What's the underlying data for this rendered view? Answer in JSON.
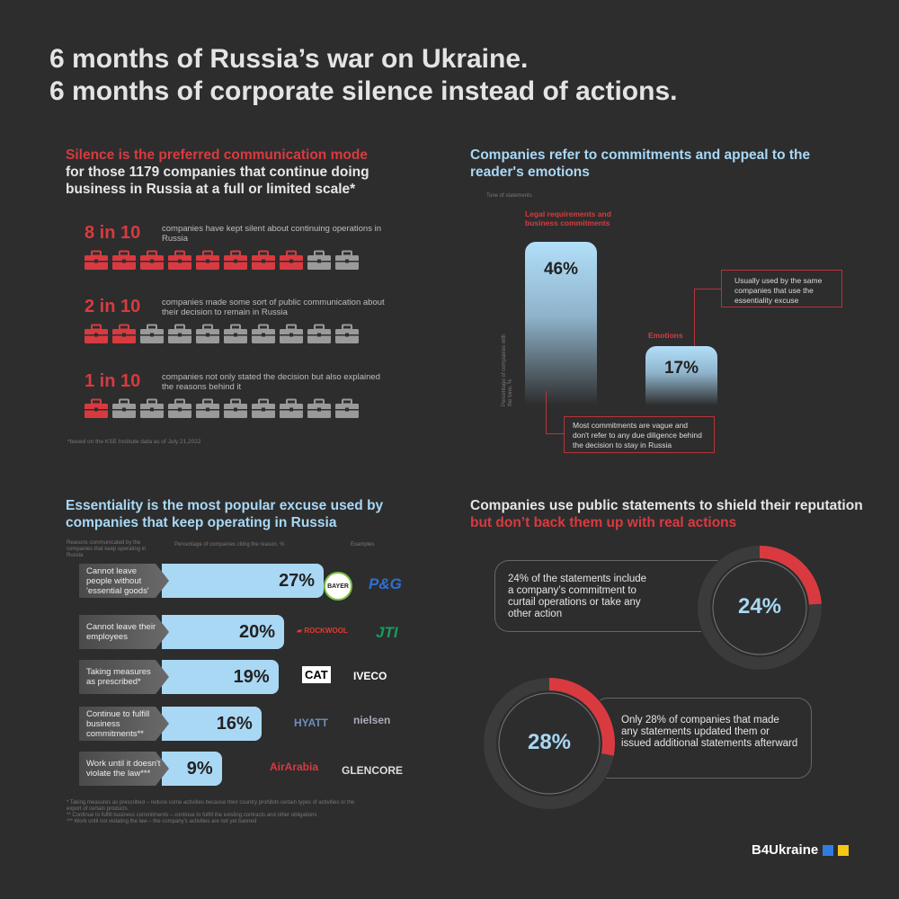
{
  "title": {
    "line1": "6 months of Russia’s war on Ukraine.",
    "line2": "6 months of corporate silence instead of actions."
  },
  "colors": {
    "background": "#2d2d2d",
    "red": "#d93a40",
    "blue": "#a9d8f5",
    "grey": "#9a9a9a"
  },
  "silence": {
    "heading_red": "Silence is the preferred communication mode",
    "heading_rest": " for those 1179 companies that continue doing business in Russia at a full or limited scale*",
    "stats": [
      {
        "value": "8 in 10",
        "text": "companies have kept silent about continuing operations in Russia",
        "filled": 8,
        "total": 10
      },
      {
        "value": "2 in 10",
        "text": "companies made some sort of public communication about their decision to remain in Russia",
        "filled": 2,
        "total": 10
      },
      {
        "value": "1 in 10",
        "text": "companies not only stated the decision but also explained the reasons behind it",
        "filled": 1,
        "total": 10
      }
    ],
    "icon": "briefcase-icon",
    "footnote": "*based on the KSE Institute data as of July 21,2022"
  },
  "tone": {
    "heading": "Companies refer to commitments and appeal to the reader's emotions",
    "axis_title": "Tone of statements",
    "ylabel": "Percentage of companies with the tone, %",
    "bars": [
      {
        "label": "Legal requirements and business commitments",
        "value": "46%"
      },
      {
        "label": "Emotions",
        "value": "17%"
      }
    ],
    "callout1": "Usually used by the same companies that use the essentiality excuse",
    "callout2": "Most commitments are vague and don't refer to any due diligence behind the decision to stay in Russia"
  },
  "reasons": {
    "heading": "Essentiality is the most popular excuse used by companies that keep operating in Russia",
    "col1": "Reasons communicated by the companies that keep operating in Russia",
    "col2": "Percentage of companies citing the reason, %",
    "col3": "Examples",
    "rows": [
      {
        "label": "Cannot leave people without 'essential goods'",
        "value": "27%",
        "logos": [
          "BAYER",
          "P&G"
        ]
      },
      {
        "label": "Cannot leave their employees",
        "value": "20%",
        "logos": [
          "ROCKWOOL",
          "JTI"
        ]
      },
      {
        "label": "Taking measures as prescribed*",
        "value": "19%",
        "logos": [
          "CAT",
          "IVECO"
        ]
      },
      {
        "label": "Continue to fulfill business commitments**",
        "value": "16%",
        "logos": [
          "HYATT",
          "nielsen"
        ]
      },
      {
        "label": "Work until it doesn't violate the law***",
        "value": "9%",
        "logos": [
          "AirArabia",
          "GLENCORE"
        ]
      }
    ],
    "notes": [
      "* Taking measures as prescribed – reduce some activities because their country prohibits certain types of activities or the export of certain products",
      "** Continue to fulfill business commitments – continue to fulfill the existing contracts and other obligations",
      "*** Work until not violating the law – the company's activities are not yet banned"
    ]
  },
  "shield": {
    "heading_blue": "Companies use public statements to shield their reputation",
    "heading_red": " but don’t back them up with real actions",
    "donuts": [
      {
        "value": "24%",
        "text": "24% of the statements include a company’s commitment to curtail operations or take any other action"
      },
      {
        "value": "28%",
        "text": "Only 28% of companies that made any statements updated them or issued additional statements afterward"
      }
    ]
  },
  "brand": "B4Ukraine",
  "chart_data": [
    {
      "type": "bar",
      "title": "Tone of statements",
      "ylabel": "Percentage of companies with the tone, %",
      "categories": [
        "Legal requirements and business commitments",
        "Emotions"
      ],
      "values": [
        46,
        17
      ]
    },
    {
      "type": "bar",
      "orientation": "horizontal",
      "xlabel": "Percentage of companies citing the reason, %",
      "categories": [
        "Cannot leave people without 'essential goods'",
        "Cannot leave their employees",
        "Taking measures as prescribed*",
        "Continue to fulfill business commitments**",
        "Work until it doesn't violate the law***"
      ],
      "values": [
        27,
        20,
        19,
        16,
        9
      ]
    },
    {
      "type": "pie",
      "style": "donut",
      "values": [
        24,
        76
      ]
    },
    {
      "type": "pie",
      "style": "donut",
      "values": [
        28,
        72
      ]
    }
  ]
}
